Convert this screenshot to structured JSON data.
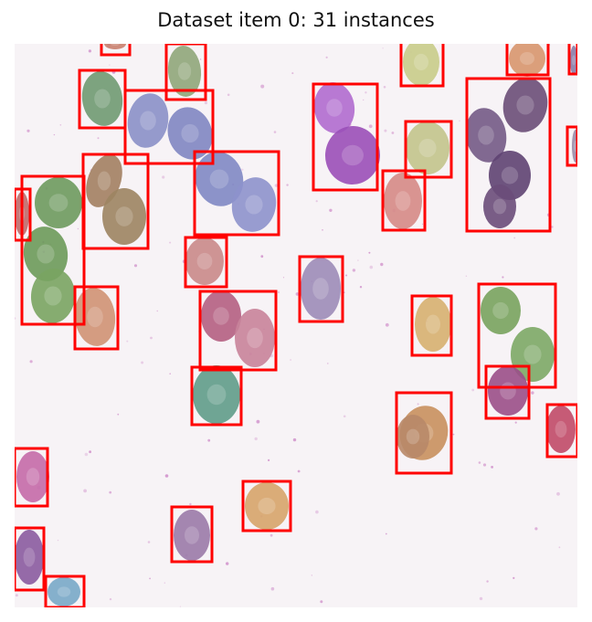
{
  "title": "Dataset item 0: 31 instances",
  "colors": {
    "background": "#f7f3f6",
    "box_stroke": "#ff0000",
    "speck": "#c777c0"
  }
}
